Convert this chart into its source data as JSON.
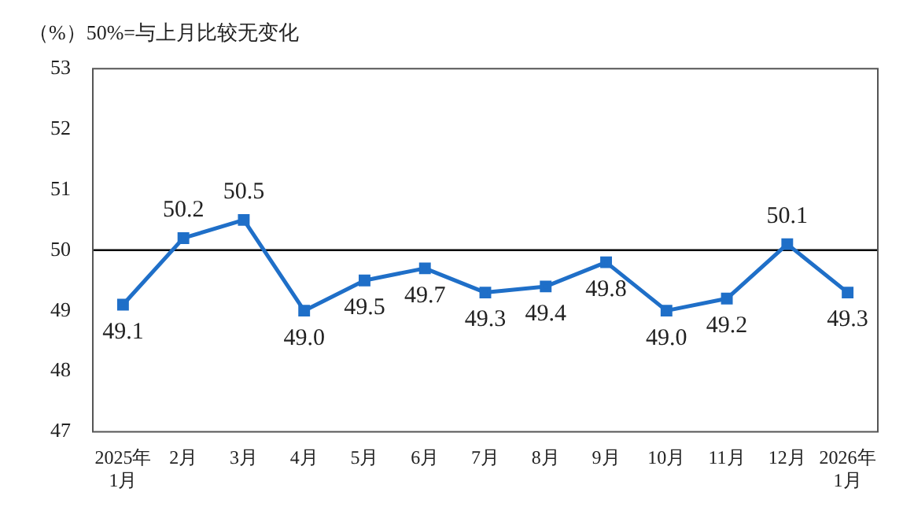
{
  "chart_data": {
    "type": "line",
    "title": "（%）50%=与上月比较无变化",
    "categories": [
      "2025年\n1月",
      "2月",
      "3月",
      "4月",
      "5月",
      "6月",
      "7月",
      "8月",
      "9月",
      "10月",
      "11月",
      "12月",
      "2026年\n1月"
    ],
    "series": [
      {
        "color": "#1f6fc8",
        "values": [
          49.1,
          50.2,
          50.5,
          49.0,
          49.5,
          49.7,
          49.3,
          49.4,
          49.8,
          49.0,
          49.2,
          50.1,
          49.3
        ],
        "value_labels": [
          "49.1",
          "50.2",
          "50.5",
          "49.0",
          "49.5",
          "49.7",
          "49.3",
          "49.4",
          "49.8",
          "49.0",
          "49.2",
          "50.1",
          "49.3"
        ]
      }
    ],
    "ylim": [
      47,
      53
    ],
    "yticks": [
      47,
      48,
      49,
      50,
      51,
      52,
      53
    ],
    "ref_lines": [
      {
        "axis": "y",
        "value": 50,
        "color": "#000000"
      }
    ],
    "grid": false,
    "legend": false,
    "marker": "square",
    "line_style": "solid"
  }
}
